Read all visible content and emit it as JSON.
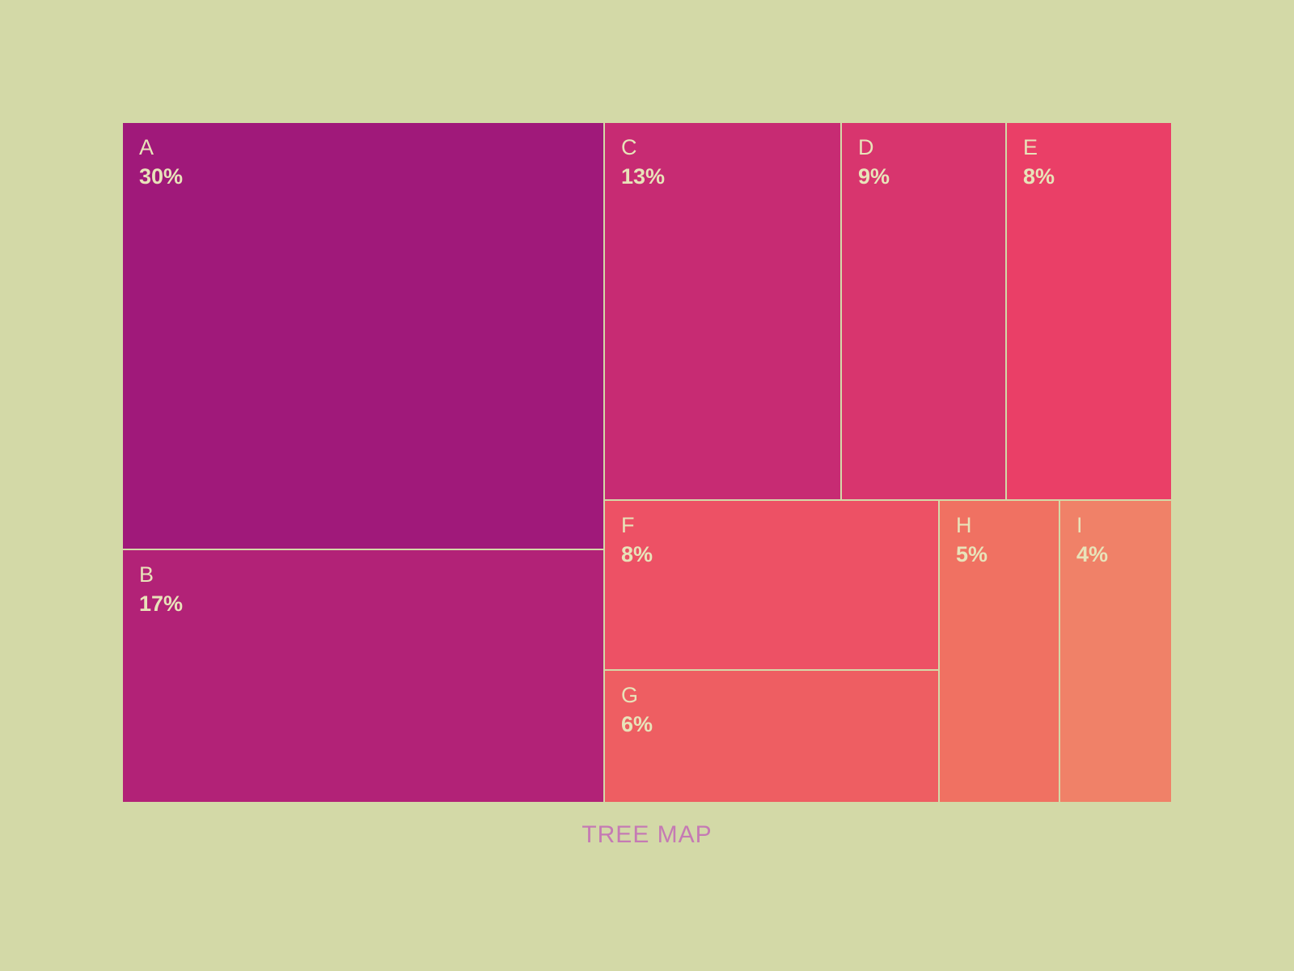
{
  "chart_data": {
    "type": "treemap",
    "title": "TREE MAP",
    "items": [
      {
        "name": "A",
        "value": 30,
        "label": "30%",
        "color": "#a0197a"
      },
      {
        "name": "B",
        "value": 17,
        "label": "17%",
        "color": "#b22277"
      },
      {
        "name": "C",
        "value": 13,
        "label": "13%",
        "color": "#c72b73"
      },
      {
        "name": "D",
        "value": 9,
        "label": "9%",
        "color": "#d8356e"
      },
      {
        "name": "E",
        "value": 8,
        "label": "8%",
        "color": "#ea3f67"
      },
      {
        "name": "F",
        "value": 8,
        "label": "8%",
        "color": "#ed5165"
      },
      {
        "name": "G",
        "value": 6,
        "label": "6%",
        "color": "#ee5e62"
      },
      {
        "name": "H",
        "value": 5,
        "label": "5%",
        "color": "#f07162"
      },
      {
        "name": "I",
        "value": 4,
        "label": "4%",
        "color": "#f08168"
      }
    ]
  },
  "colors": {
    "background": "#d3d9a7",
    "tile_text": "#e8e3b9",
    "title": "#c57ab4"
  }
}
